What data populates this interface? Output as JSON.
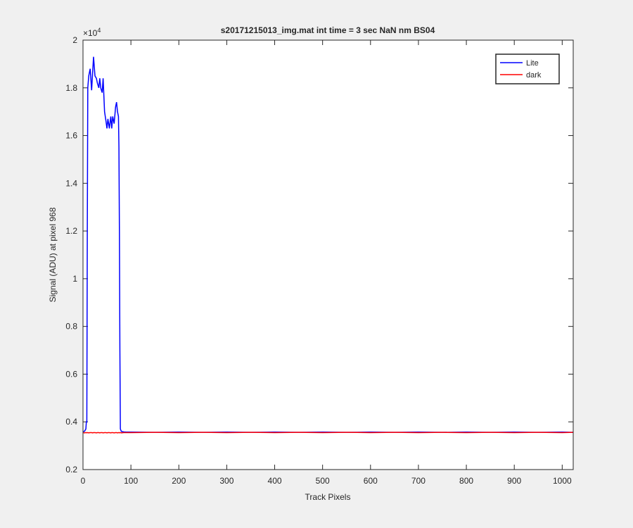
{
  "chart_data": {
    "type": "line",
    "title": "s20171215013_img.mat int time = 3 sec  NaN nm BS04",
    "x_label": "Track Pixels",
    "y_label": "Signal (ADU) at pixel 968",
    "y_multiplier": {
      "base": "×10",
      "exponent": "4"
    },
    "x": [
      0,
      3,
      6,
      7,
      8,
      9,
      10,
      12,
      15,
      18,
      20,
      22,
      25,
      28,
      30,
      33,
      35,
      37,
      40,
      42,
      45,
      48,
      50,
      52,
      55,
      58,
      60,
      62,
      65,
      68,
      70,
      72,
      74,
      75,
      76,
      77,
      78,
      80,
      85,
      90,
      100,
      150,
      200,
      250,
      300,
      350,
      400,
      450,
      500,
      550,
      600,
      650,
      700,
      750,
      800,
      850,
      900,
      950,
      1000,
      1023
    ],
    "series": [
      {
        "name": "Lite",
        "color": "#0000ff",
        "values": [
          0.36,
          0.36,
          0.37,
          0.4,
          0.4,
          1.2,
          1.8,
          1.85,
          1.88,
          1.79,
          1.86,
          1.93,
          1.85,
          1.84,
          1.82,
          1.8,
          1.84,
          1.8,
          1.78,
          1.84,
          1.7,
          1.66,
          1.63,
          1.67,
          1.63,
          1.68,
          1.63,
          1.68,
          1.65,
          1.72,
          1.74,
          1.7,
          1.68,
          1.55,
          1.2,
          0.7,
          0.37,
          0.36,
          0.358,
          0.357,
          0.357,
          0.356,
          0.357,
          0.356,
          0.357,
          0.356,
          0.357,
          0.356,
          0.357,
          0.356,
          0.357,
          0.356,
          0.357,
          0.356,
          0.357,
          0.356,
          0.357,
          0.356,
          0.357,
          0.356
        ]
      },
      {
        "name": "dark",
        "color": "#ff0000",
        "values": [
          0.355,
          0.354,
          0.355,
          0.355,
          0.354,
          0.355,
          0.355,
          0.354,
          0.355,
          0.355,
          0.354,
          0.355,
          0.355,
          0.354,
          0.355,
          0.355,
          0.354,
          0.355,
          0.355,
          0.354,
          0.355,
          0.355,
          0.354,
          0.355,
          0.355,
          0.354,
          0.355,
          0.355,
          0.354,
          0.355,
          0.355,
          0.354,
          0.355,
          0.355,
          0.354,
          0.355,
          0.355,
          0.354,
          0.355,
          0.355,
          0.355,
          0.356,
          0.355,
          0.356,
          0.355,
          0.356,
          0.355,
          0.356,
          0.355,
          0.356,
          0.355,
          0.356,
          0.355,
          0.356,
          0.355,
          0.356,
          0.355,
          0.356,
          0.355,
          0.356
        ]
      }
    ],
    "xlim": [
      0,
      1023
    ],
    "ylim": [
      0.2,
      2
    ],
    "xticks": [
      0,
      100,
      200,
      300,
      400,
      500,
      600,
      700,
      800,
      900,
      1000
    ],
    "yticks": [
      0.2,
      0.4,
      0.6,
      0.8,
      1,
      1.2,
      1.4,
      1.6,
      1.8,
      2
    ],
    "grid": false,
    "legend": "top-right"
  }
}
